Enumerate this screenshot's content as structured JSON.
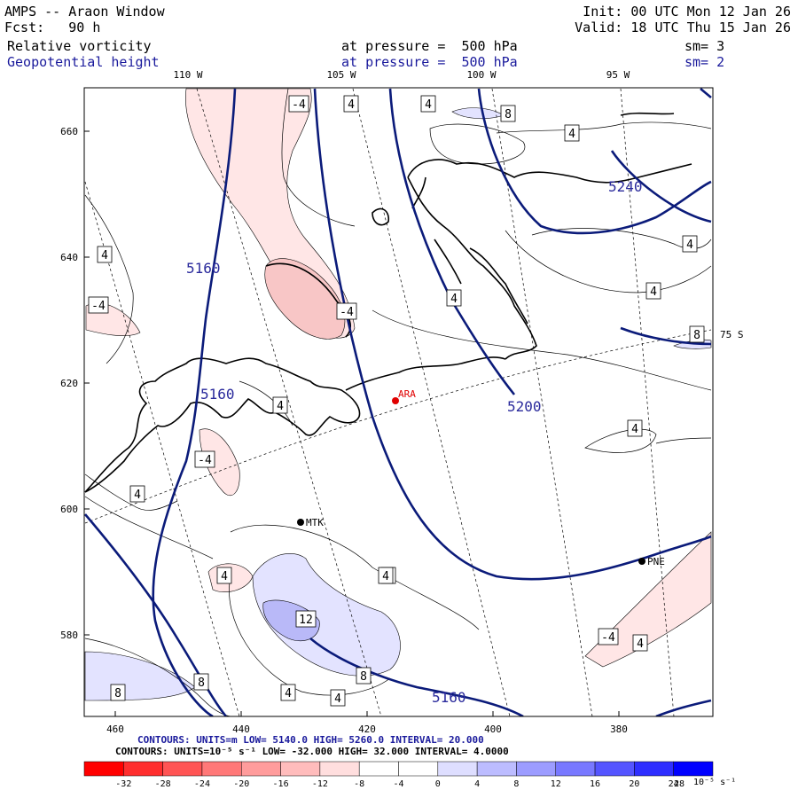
{
  "header": {
    "model_title": "AMPS -- Araon Window",
    "init": "Init: 00 UTC Mon 12 Jan 26",
    "fcst": "Fcst:   90 h",
    "valid": "Valid: 18 UTC Thu 15 Jan 26",
    "field1": "Relative vorticity",
    "field1_pressure": "at pressure =  500 hPa",
    "field1_sm": "sm= 3",
    "field2": "Geopotential height",
    "field2_pressure": "at pressure =  500 hPa",
    "field2_sm": "sm= 2"
  },
  "map": {
    "lon_labels": [
      "110 W",
      "105 W",
      "100 W",
      "95 W"
    ],
    "lat_label": "75 S",
    "left_axis": [
      "660",
      "640",
      "620",
      "600",
      "580"
    ],
    "bottom_axis": [
      "460",
      "440",
      "420",
      "400",
      "380"
    ],
    "stations": [
      {
        "id": "ARA",
        "color": "#e00000"
      },
      {
        "id": "MTK",
        "color": "#000000"
      },
      {
        "id": "PNE",
        "color": "#000000"
      }
    ],
    "height_labels": [
      "5160",
      "5160",
      "5200",
      "5240",
      "5160"
    ],
    "vort_labels": [
      "-4",
      "4",
      "4",
      "8",
      "4",
      "4",
      "4",
      "4",
      "-4",
      "-4",
      "4",
      "4",
      "8",
      "4",
      "-4",
      "4",
      "4",
      "12",
      "4",
      "8",
      "4",
      "8",
      "-4",
      "4",
      "8",
      "4",
      "4"
    ]
  },
  "footer": {
    "line1": "CONTOURS:  UNITS=m  LOW=  5140.0      HIGH=  5260.0       INTERVAL=   20.000",
    "line2": "CONTOURS:  UNITS=10⁻⁵ s⁻¹  LOW= -32.000     HIGH=  32.000     INTERVAL=   4.0000"
  },
  "colorbar": {
    "labels": [
      "-32",
      "-28",
      "-24",
      "-20",
      "-16",
      "-12",
      "-8",
      "-4",
      "0",
      "4",
      "8",
      "12",
      "16",
      "20",
      "24",
      "28",
      "32"
    ],
    "units": "10⁻⁵ s⁻¹",
    "colors": [
      "#ff0000",
      "#ff2e2e",
      "#ff5454",
      "#ff7878",
      "#ff9c9c",
      "#ffbcbc",
      "#ffdede",
      "#ffffff",
      "#ffffff",
      "#dedeff",
      "#bcbcff",
      "#9c9cff",
      "#7878ff",
      "#5454ff",
      "#2e2eff",
      "#0000ff"
    ]
  }
}
